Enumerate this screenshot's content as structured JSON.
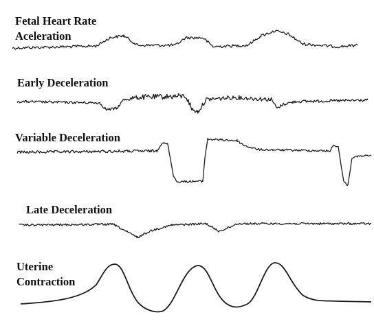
{
  "traces": [
    {
      "label": [
        "Fetal Heart Rate",
        "Aceleration"
      ]
    },
    {
      "label": [
        "Early Deceleration"
      ]
    },
    {
      "label": [
        "Variable Deceleration"
      ]
    },
    {
      "label": [
        "Late Deceleration"
      ]
    },
    {
      "label": [
        "Uterine",
        "Contraction"
      ]
    }
  ]
}
